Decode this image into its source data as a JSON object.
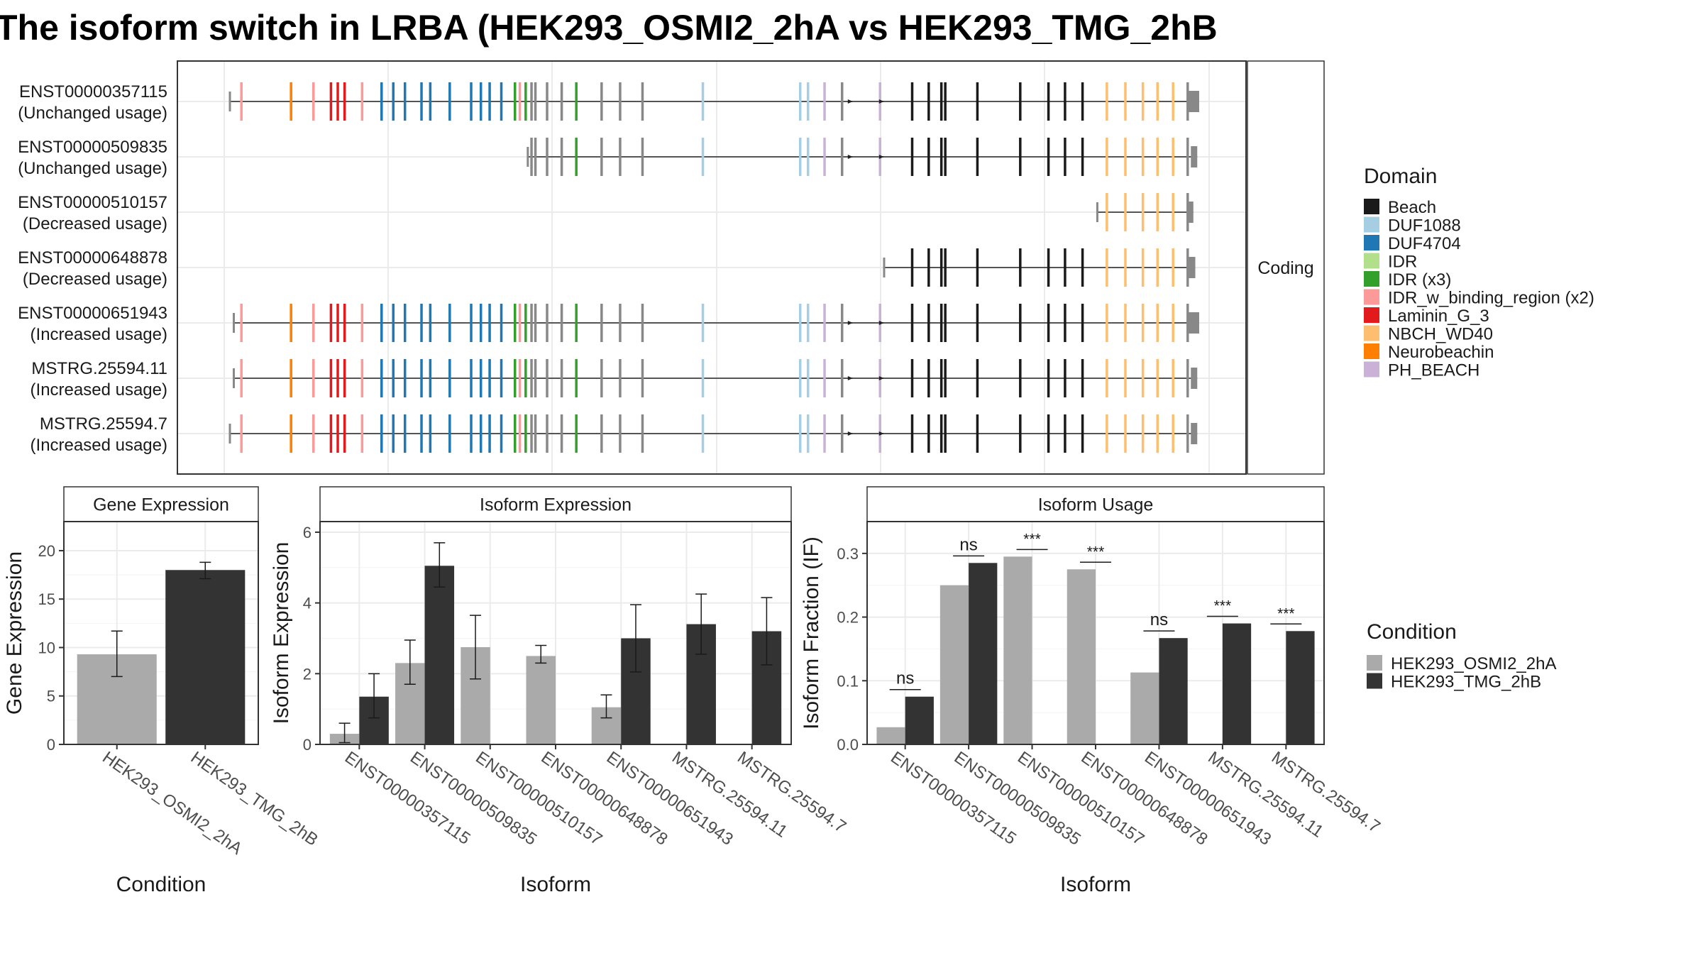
{
  "title": "The isoform switch in LRBA (HEK293_OSMI2_2hA vs HEK293_TMG_2hB",
  "colors": {
    "OSMI2": "#aaaaaa",
    "TMG": "#333333",
    "panel_border": "#333333",
    "strip_fill": "#ffffff",
    "grid": "#ebebeb",
    "exon_utr": "#888888",
    "intron": "#555555"
  },
  "structure": {
    "strip_label": "Coding",
    "genomic_range": [
      0,
      1000
    ],
    "isoforms": [
      {
        "id": "ENST00000357115",
        "status": "(Unchanged usage)",
        "start": 4,
        "end": 1000
      },
      {
        "id": "ENST00000509835",
        "status": "(Unchanged usage)",
        "start": 310,
        "end": 998
      },
      {
        "id": "ENST00000510157",
        "status": "(Decreased usage)",
        "start": 895,
        "end": 994
      },
      {
        "id": "ENST00000648878",
        "status": "(Decreased usage)",
        "start": 676,
        "end": 996
      },
      {
        "id": "ENST00000651943",
        "status": "(Increased usage)",
        "start": 8,
        "end": 1000
      },
      {
        "id": "MSTRG.25594.11",
        "status": "(Increased usage)",
        "start": 8,
        "end": 998
      },
      {
        "id": "MSTRG.25594.7",
        "status": "(Increased usage)",
        "start": 4,
        "end": 998
      }
    ],
    "exons": [
      {
        "x": 16,
        "domain": "IDR_w_binding_region (x2)"
      },
      {
        "x": 67,
        "domain": "Neurobeachin"
      },
      {
        "x": 90,
        "domain": "IDR_w_binding_region (x2)"
      },
      {
        "x": 108,
        "domain": "Laminin_G_3"
      },
      {
        "x": 115,
        "domain": "Laminin_G_3"
      },
      {
        "x": 122,
        "domain": "Laminin_G_3"
      },
      {
        "x": 140,
        "domain": "IDR_w_binding_region (x2)"
      },
      {
        "x": 160,
        "domain": "DUF4704"
      },
      {
        "x": 172,
        "domain": "DUF4704"
      },
      {
        "x": 184,
        "domain": "DUF4704"
      },
      {
        "x": 201,
        "domain": "DUF4704"
      },
      {
        "x": 210,
        "domain": "DUF4704"
      },
      {
        "x": 230,
        "domain": "DUF4704"
      },
      {
        "x": 252,
        "domain": "DUF4704"
      },
      {
        "x": 262,
        "domain": "DUF4704"
      },
      {
        "x": 271,
        "domain": "DUF4704"
      },
      {
        "x": 283,
        "domain": "DUF4704"
      },
      {
        "x": 297,
        "domain": "IDR (x3)"
      },
      {
        "x": 302,
        "domain": "IDR_w_binding_region (x2)"
      },
      {
        "x": 308,
        "domain": "IDR (x3)"
      },
      {
        "x": 314,
        "domain": "none"
      },
      {
        "x": 318,
        "domain": "none"
      },
      {
        "x": 330,
        "domain": "none"
      },
      {
        "x": 345,
        "domain": "none"
      },
      {
        "x": 360,
        "domain": "IDR (x3)"
      },
      {
        "x": 386,
        "domain": "none"
      },
      {
        "x": 405,
        "domain": "none"
      },
      {
        "x": 428,
        "domain": "none"
      },
      {
        "x": 490,
        "domain": "DUF1088"
      },
      {
        "x": 590,
        "domain": "DUF1088"
      },
      {
        "x": 598,
        "domain": "DUF1088"
      },
      {
        "x": 615,
        "domain": "PH_BEACH"
      },
      {
        "x": 633,
        "domain": "none"
      },
      {
        "x": 672,
        "domain": "PH_BEACH"
      },
      {
        "x": 705,
        "domain": "Beach"
      },
      {
        "x": 722,
        "domain": "Beach"
      },
      {
        "x": 735,
        "domain": "Beach"
      },
      {
        "x": 739,
        "domain": "Beach"
      },
      {
        "x": 772,
        "domain": "Beach"
      },
      {
        "x": 816,
        "domain": "Beach"
      },
      {
        "x": 845,
        "domain": "Beach"
      },
      {
        "x": 862,
        "domain": "Beach"
      },
      {
        "x": 880,
        "domain": "Beach"
      },
      {
        "x": 905,
        "domain": "NBCH_WD40"
      },
      {
        "x": 924,
        "domain": "NBCH_WD40"
      },
      {
        "x": 942,
        "domain": "NBCH_WD40"
      },
      {
        "x": 957,
        "domain": "NBCH_WD40"
      },
      {
        "x": 973,
        "domain": "NBCH_WD40"
      },
      {
        "x": 988,
        "domain": "none"
      }
    ],
    "arrows": [
      642,
      674
    ]
  },
  "legend_domain": {
    "title": "Domain",
    "entries": [
      {
        "label": "Beach",
        "color": "#1a1a1a"
      },
      {
        "label": "DUF1088",
        "color": "#a6cee3"
      },
      {
        "label": "DUF4704",
        "color": "#1f78b4"
      },
      {
        "label": "IDR",
        "color": "#b2df8a"
      },
      {
        "label": "IDR (x3)",
        "color": "#33a02c"
      },
      {
        "label": "IDR_w_binding_region (x2)",
        "color": "#fb9a99"
      },
      {
        "label": "Laminin_G_3",
        "color": "#e31a1c"
      },
      {
        "label": "NBCH_WD40",
        "color": "#fdbf6f"
      },
      {
        "label": "Neurobeachin",
        "color": "#ff7f00"
      },
      {
        "label": "PH_BEACH",
        "color": "#cab2d6"
      }
    ]
  },
  "legend_condition": {
    "title": "Condition",
    "entries": [
      {
        "label": "HEK293_OSMI2_2hA",
        "color": "#aaaaaa"
      },
      {
        "label": "HEK293_TMG_2hB",
        "color": "#333333"
      }
    ]
  },
  "chart_data": [
    {
      "type": "bar",
      "strip": "Gene Expression",
      "xlabel": "Condition",
      "ylabel": "Gene Expression",
      "ylim": [
        0,
        23
      ],
      "yticks": [
        0,
        5,
        10,
        15,
        20
      ],
      "categories": [
        "HEK293_OSMI2_2hA",
        "HEK293_TMG_2hB"
      ],
      "values": [
        9.3,
        18.0
      ],
      "errors": [
        [
          7.0,
          11.7
        ],
        [
          17.1,
          18.8
        ]
      ]
    },
    {
      "type": "bar",
      "strip": "Isoform Expression",
      "xlabel": "Isoform",
      "ylabel": "Isoform Expression",
      "ylim": [
        0,
        6.3
      ],
      "yticks": [
        0,
        2,
        4,
        6
      ],
      "categories": [
        "ENST00000357115",
        "ENST00000509835",
        "ENST00000510157",
        "ENST00000648878",
        "ENST00000651943",
        "MSTRG.25594.11",
        "MSTRG.25594.7"
      ],
      "series": [
        {
          "name": "HEK293_OSMI2_2hA",
          "values": [
            0.3,
            2.3,
            2.75,
            2.5,
            1.05,
            0.0,
            0.0
          ],
          "errors": [
            [
              0.05,
              0.6
            ],
            [
              1.7,
              2.95
            ],
            [
              1.85,
              3.65
            ],
            [
              2.3,
              2.8
            ],
            [
              0.75,
              1.4
            ],
            [
              0,
              0
            ],
            [
              0,
              0
            ]
          ]
        },
        {
          "name": "HEK293_TMG_2hB",
          "values": [
            1.35,
            5.05,
            0.0,
            0.0,
            3.0,
            3.4,
            3.2
          ],
          "errors": [
            [
              0.75,
              2.0
            ],
            [
              4.45,
              5.7
            ],
            [
              0,
              0
            ],
            [
              0,
              0
            ],
            [
              2.05,
              3.95
            ],
            [
              2.55,
              4.25
            ],
            [
              2.25,
              4.15
            ]
          ]
        }
      ]
    },
    {
      "type": "bar",
      "strip": "Isoform Usage",
      "xlabel": "Isoform",
      "ylabel": "Isoform Fraction (IF)",
      "ylim": [
        0,
        0.35
      ],
      "yticks": [
        "0.0",
        "0.1",
        "0.2",
        "0.3"
      ],
      "categories": [
        "ENST00000357115",
        "ENST00000509835",
        "ENST00000510157",
        "ENST00000648878",
        "ENST00000651943",
        "MSTRG.25594.11",
        "MSTRG.25594.7"
      ],
      "series": [
        {
          "name": "HEK293_OSMI2_2hA",
          "values": [
            0.027,
            0.25,
            0.295,
            0.275,
            0.113,
            0.0,
            0.0
          ]
        },
        {
          "name": "HEK293_TMG_2hB",
          "values": [
            0.075,
            0.285,
            0.0,
            0.0,
            0.167,
            0.19,
            0.178
          ]
        }
      ],
      "significance": [
        "ns",
        "ns",
        "***",
        "***",
        "ns",
        "***",
        "***"
      ]
    }
  ]
}
